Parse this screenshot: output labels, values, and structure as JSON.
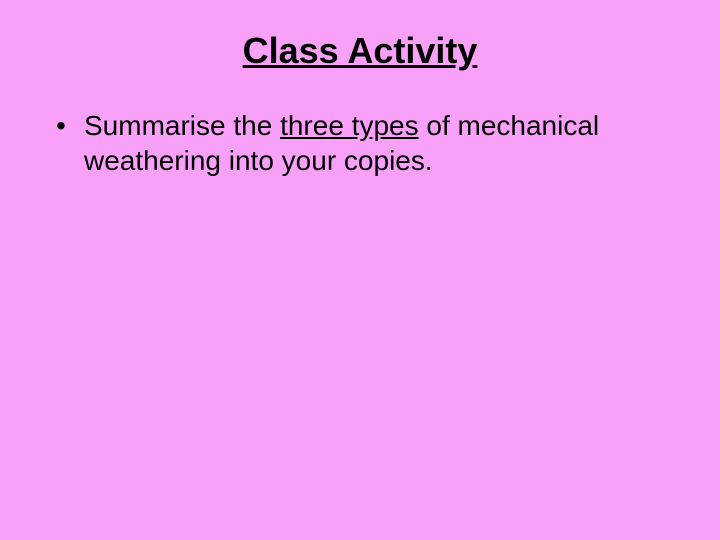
{
  "slide": {
    "background_color": "#f9a0f9",
    "text_color": "#000000",
    "title": {
      "text": "Class Activity",
      "fontsize": 36,
      "font_weight": "bold",
      "underline": true,
      "align": "center"
    },
    "bullets": [
      {
        "prefix": "Summarise the ",
        "underlined": "three types",
        "suffix": " of mechanical weathering into your copies.",
        "fontsize": 28
      }
    ],
    "font_family": "Arial"
  }
}
